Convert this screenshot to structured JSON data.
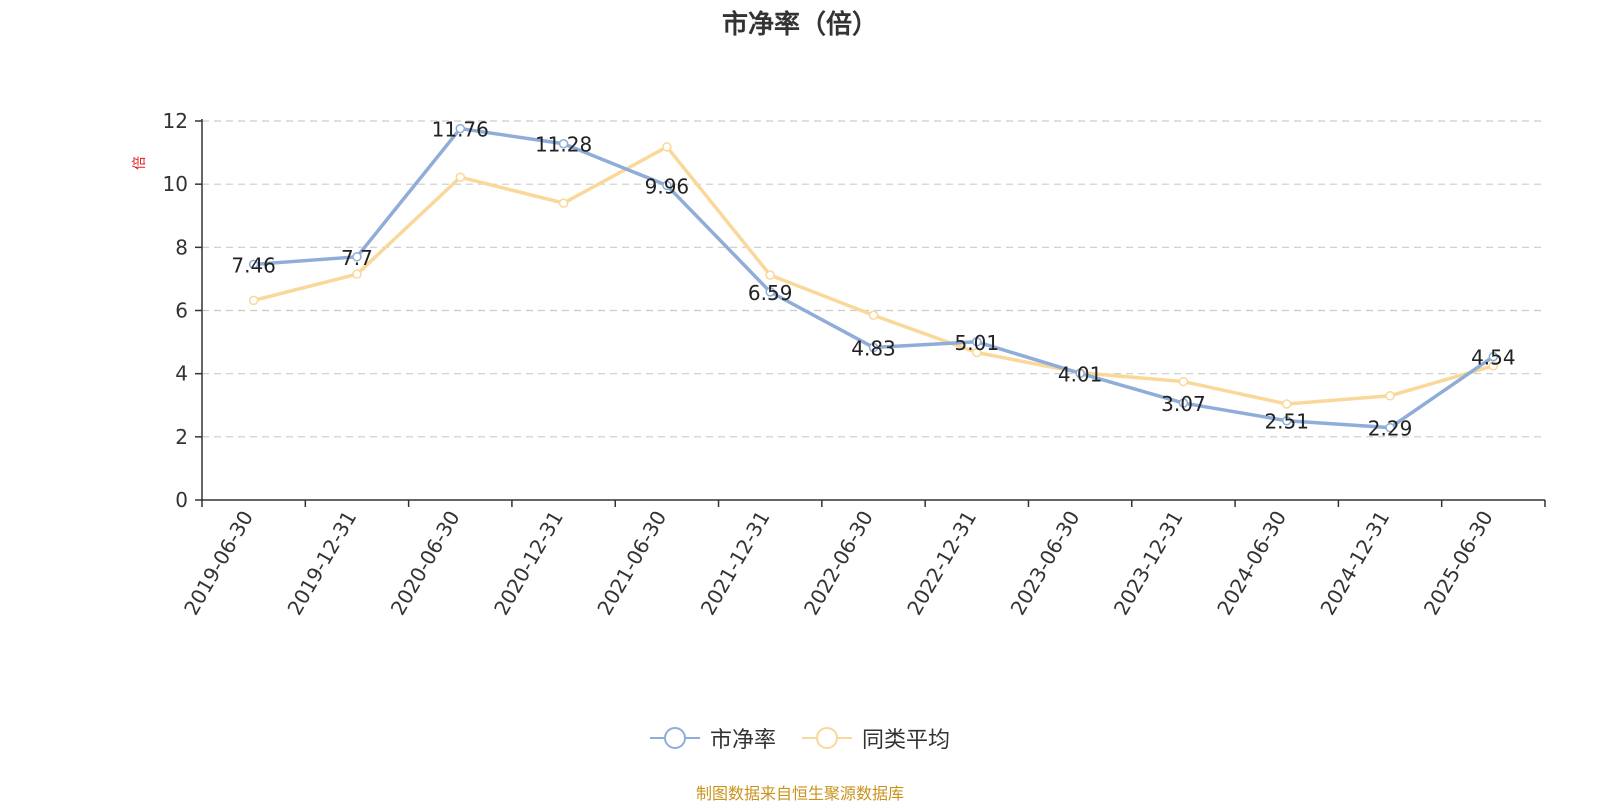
{
  "chart_data": {
    "type": "line",
    "title": "市净率（倍）",
    "unit_label": "倍",
    "categories": [
      "2019-06-30",
      "2019-12-31",
      "2020-06-30",
      "2020-12-31",
      "2021-06-30",
      "2021-12-31",
      "2022-06-30",
      "2022-12-31",
      "2023-06-30",
      "2023-12-31",
      "2024-06-30",
      "2024-12-31",
      "2025-06-30"
    ],
    "ylim": [
      0,
      12
    ],
    "yticks": [
      0,
      2,
      4,
      6,
      8,
      10,
      12
    ],
    "grid": true,
    "legend_position": "bottom",
    "series": [
      {
        "name": "市净率",
        "color": "#8fadd8",
        "show_labels": true,
        "values": [
          7.46,
          7.7,
          11.76,
          11.28,
          9.96,
          6.59,
          4.83,
          5.01,
          4.01,
          3.07,
          2.51,
          2.29,
          4.54
        ]
      },
      {
        "name": "同类平均",
        "color": "#f9d89a",
        "show_labels": false,
        "values": [
          6.32,
          7.15,
          10.22,
          9.4,
          11.18,
          7.12,
          5.85,
          4.67,
          4.03,
          3.75,
          3.04,
          3.3,
          4.25
        ]
      }
    ]
  },
  "footer": {
    "source": "制图数据来自恒生聚源数据库"
  }
}
